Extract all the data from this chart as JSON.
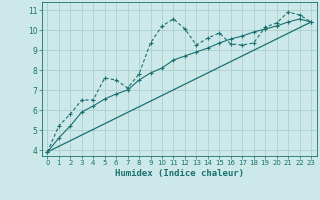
{
  "title": "",
  "xlabel": "Humidex (Indice chaleur)",
  "ylabel": "",
  "bg_color": "#cce8e8",
  "grid_color": "#aacfcf",
  "line_color": "#1a7070",
  "xlim": [
    -0.5,
    23.5
  ],
  "ylim": [
    3.7,
    11.4
  ],
  "xticks": [
    0,
    1,
    2,
    3,
    4,
    5,
    6,
    7,
    8,
    9,
    10,
    11,
    12,
    13,
    14,
    15,
    16,
    17,
    18,
    19,
    20,
    21,
    22,
    23
  ],
  "yticks": [
    4,
    5,
    6,
    7,
    8,
    9,
    10,
    11
  ],
  "line1_x": [
    0,
    1,
    2,
    3,
    4,
    5,
    6,
    7,
    8,
    9,
    10,
    11,
    12,
    13,
    14,
    15,
    16,
    17,
    18,
    19,
    20,
    21,
    22,
    23
  ],
  "line1_y": [
    3.9,
    5.2,
    5.8,
    6.5,
    6.5,
    7.6,
    7.5,
    7.1,
    7.8,
    9.35,
    10.2,
    10.55,
    10.05,
    9.25,
    9.6,
    9.85,
    9.3,
    9.25,
    9.35,
    10.15,
    10.35,
    10.9,
    10.75,
    10.4
  ],
  "line2_x": [
    0,
    23
  ],
  "line2_y": [
    3.9,
    10.4
  ],
  "line3_x": [
    0,
    1,
    2,
    3,
    4,
    5,
    6,
    7,
    8,
    9,
    10,
    11,
    12,
    13,
    14,
    15,
    16,
    17,
    18,
    19,
    20,
    21,
    22,
    23
  ],
  "line3_y": [
    3.9,
    4.6,
    5.2,
    5.9,
    6.2,
    6.55,
    6.8,
    7.0,
    7.5,
    7.85,
    8.1,
    8.5,
    8.7,
    8.9,
    9.1,
    9.35,
    9.55,
    9.7,
    9.9,
    10.05,
    10.2,
    10.4,
    10.55,
    10.4
  ]
}
